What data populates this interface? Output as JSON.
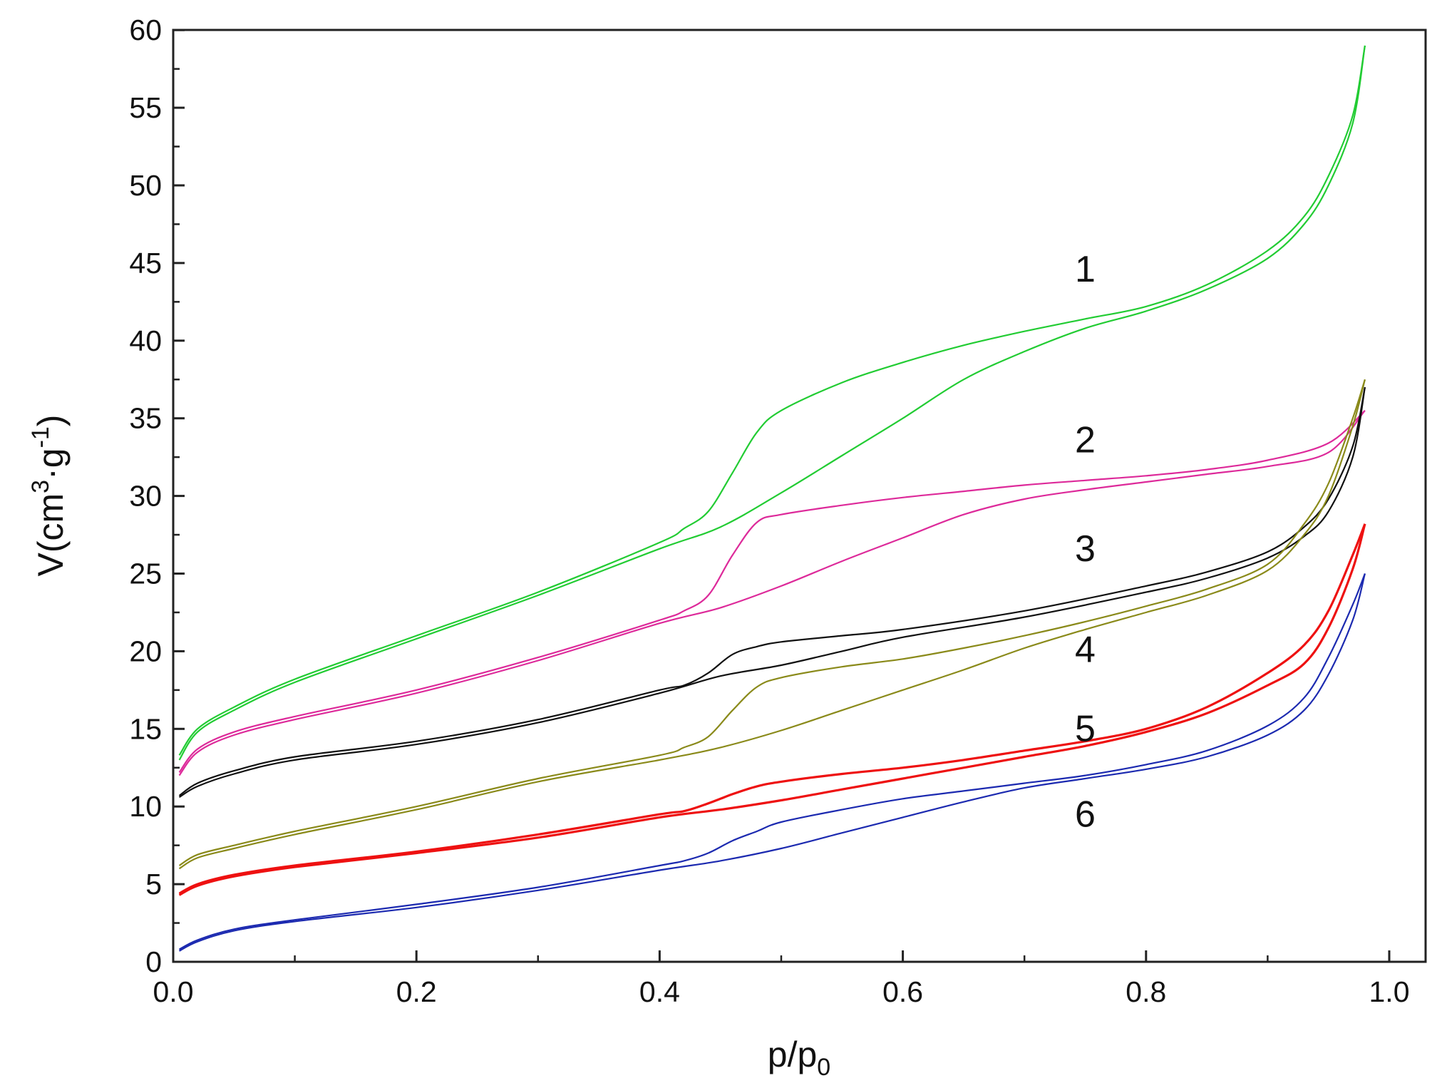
{
  "chart_data": {
    "type": "line",
    "title": "",
    "xlabel": {
      "main": "p/p",
      "sub": "0"
    },
    "ylabel": {
      "prefix": "V(cm",
      "sup1": "3",
      "mid": "·g",
      "sup2": "-1",
      "suffix": ")"
    },
    "xlim": [
      0.0,
      1.03
    ],
    "ylim": [
      0,
      60
    ],
    "xticks": [
      {
        "value": 0.0,
        "label": "0.0"
      },
      {
        "value": 0.2,
        "label": "0.2"
      },
      {
        "value": 0.4,
        "label": "0.4"
      },
      {
        "value": 0.6,
        "label": "0.6"
      },
      {
        "value": 0.8,
        "label": "0.8"
      },
      {
        "value": 1.0,
        "label": "1.0"
      }
    ],
    "xminor": [
      0.1,
      0.3,
      0.5,
      0.7,
      0.9
    ],
    "yticks": [
      {
        "value": 0,
        "label": "0"
      },
      {
        "value": 5,
        "label": "5"
      },
      {
        "value": 10,
        "label": "10"
      },
      {
        "value": 15,
        "label": "15"
      },
      {
        "value": 20,
        "label": "20"
      },
      {
        "value": 25,
        "label": "25"
      },
      {
        "value": 30,
        "label": "30"
      },
      {
        "value": 35,
        "label": "35"
      },
      {
        "value": 40,
        "label": "40"
      },
      {
        "value": 45,
        "label": "45"
      },
      {
        "value": 50,
        "label": "50"
      },
      {
        "value": 55,
        "label": "55"
      },
      {
        "value": 60,
        "label": "60"
      }
    ],
    "yminor": [
      2.5,
      7.5,
      12.5,
      17.5,
      22.5,
      27.5,
      32.5,
      37.5,
      42.5,
      47.5,
      52.5,
      57.5
    ],
    "grid": false,
    "series": [
      {
        "name": "1",
        "color": "#22cc33",
        "label_at": [
          0.75,
          43.8
        ],
        "adsorption": [
          [
            0.005,
            13.0
          ],
          [
            0.02,
            14.8
          ],
          [
            0.05,
            16.2
          ],
          [
            0.1,
            18.0
          ],
          [
            0.2,
            20.8
          ],
          [
            0.3,
            23.6
          ],
          [
            0.4,
            26.6
          ],
          [
            0.45,
            28.0
          ],
          [
            0.5,
            30.2
          ],
          [
            0.55,
            32.6
          ],
          [
            0.6,
            35.0
          ],
          [
            0.65,
            37.5
          ],
          [
            0.7,
            39.3
          ],
          [
            0.75,
            40.8
          ],
          [
            0.8,
            41.9
          ],
          [
            0.85,
            43.3
          ],
          [
            0.9,
            45.3
          ],
          [
            0.93,
            47.5
          ],
          [
            0.95,
            50.0
          ],
          [
            0.97,
            54.0
          ],
          [
            0.98,
            59.0
          ]
        ],
        "desorption": [
          [
            0.98,
            59.0
          ],
          [
            0.97,
            54.5
          ],
          [
            0.95,
            50.6
          ],
          [
            0.93,
            48.0
          ],
          [
            0.9,
            45.8
          ],
          [
            0.85,
            43.6
          ],
          [
            0.8,
            42.2
          ],
          [
            0.75,
            41.4
          ],
          [
            0.7,
            40.6
          ],
          [
            0.65,
            39.7
          ],
          [
            0.6,
            38.6
          ],
          [
            0.55,
            37.3
          ],
          [
            0.5,
            35.5
          ],
          [
            0.48,
            34.1
          ],
          [
            0.46,
            31.5
          ],
          [
            0.44,
            29.0
          ],
          [
            0.42,
            27.9
          ],
          [
            0.4,
            27.0
          ],
          [
            0.3,
            23.8
          ],
          [
            0.2,
            21.0
          ],
          [
            0.1,
            18.2
          ],
          [
            0.05,
            16.4
          ],
          [
            0.02,
            15.0
          ],
          [
            0.005,
            13.3
          ]
        ]
      },
      {
        "name": "2",
        "color": "#dd2a9a",
        "label_at": [
          0.75,
          32.8
        ],
        "adsorption": [
          [
            0.005,
            12.0
          ],
          [
            0.02,
            13.5
          ],
          [
            0.05,
            14.6
          ],
          [
            0.1,
            15.6
          ],
          [
            0.2,
            17.3
          ],
          [
            0.3,
            19.4
          ],
          [
            0.4,
            21.8
          ],
          [
            0.45,
            22.8
          ],
          [
            0.5,
            24.2
          ],
          [
            0.55,
            25.8
          ],
          [
            0.6,
            27.3
          ],
          [
            0.65,
            28.8
          ],
          [
            0.7,
            29.8
          ],
          [
            0.75,
            30.4
          ],
          [
            0.8,
            30.9
          ],
          [
            0.85,
            31.4
          ],
          [
            0.9,
            31.9
          ],
          [
            0.95,
            32.8
          ],
          [
            0.98,
            35.5
          ]
        ],
        "desorption": [
          [
            0.98,
            35.5
          ],
          [
            0.95,
            33.4
          ],
          [
            0.9,
            32.3
          ],
          [
            0.85,
            31.7
          ],
          [
            0.8,
            31.3
          ],
          [
            0.75,
            31.0
          ],
          [
            0.7,
            30.7
          ],
          [
            0.65,
            30.3
          ],
          [
            0.6,
            29.9
          ],
          [
            0.55,
            29.4
          ],
          [
            0.5,
            28.8
          ],
          [
            0.48,
            28.3
          ],
          [
            0.46,
            26.2
          ],
          [
            0.44,
            23.6
          ],
          [
            0.42,
            22.6
          ],
          [
            0.4,
            22.0
          ],
          [
            0.3,
            19.6
          ],
          [
            0.2,
            17.5
          ],
          [
            0.1,
            15.8
          ],
          [
            0.05,
            14.8
          ],
          [
            0.02,
            13.7
          ],
          [
            0.005,
            12.2
          ]
        ]
      },
      {
        "name": "3",
        "color": "#111111",
        "label_at": [
          0.75,
          25.8
        ],
        "adsorption": [
          [
            0.005,
            10.6
          ],
          [
            0.02,
            11.3
          ],
          [
            0.05,
            12.1
          ],
          [
            0.1,
            13.0
          ],
          [
            0.2,
            14.0
          ],
          [
            0.3,
            15.4
          ],
          [
            0.4,
            17.3
          ],
          [
            0.45,
            18.4
          ],
          [
            0.5,
            19.1
          ],
          [
            0.55,
            20.0
          ],
          [
            0.6,
            20.9
          ],
          [
            0.7,
            22.2
          ],
          [
            0.8,
            23.8
          ],
          [
            0.85,
            24.7
          ],
          [
            0.9,
            26.0
          ],
          [
            0.93,
            27.4
          ],
          [
            0.95,
            29.0
          ],
          [
            0.97,
            32.5
          ],
          [
            0.98,
            37.0
          ]
        ],
        "desorption": [
          [
            0.98,
            37.0
          ],
          [
            0.97,
            33.2
          ],
          [
            0.95,
            29.8
          ],
          [
            0.93,
            28.0
          ],
          [
            0.9,
            26.4
          ],
          [
            0.85,
            25.1
          ],
          [
            0.8,
            24.2
          ],
          [
            0.7,
            22.6
          ],
          [
            0.6,
            21.4
          ],
          [
            0.55,
            21.0
          ],
          [
            0.5,
            20.6
          ],
          [
            0.48,
            20.3
          ],
          [
            0.46,
            19.8
          ],
          [
            0.44,
            18.6
          ],
          [
            0.42,
            17.8
          ],
          [
            0.4,
            17.5
          ],
          [
            0.3,
            15.6
          ],
          [
            0.2,
            14.2
          ],
          [
            0.1,
            13.2
          ],
          [
            0.05,
            12.3
          ],
          [
            0.02,
            11.5
          ],
          [
            0.005,
            10.7
          ]
        ]
      },
      {
        "name": "4",
        "color": "#8a8a1a",
        "label_at": [
          0.75,
          19.3
        ],
        "adsorption": [
          [
            0.005,
            6.0
          ],
          [
            0.02,
            6.7
          ],
          [
            0.05,
            7.3
          ],
          [
            0.1,
            8.2
          ],
          [
            0.2,
            9.8
          ],
          [
            0.3,
            11.6
          ],
          [
            0.4,
            13.0
          ],
          [
            0.45,
            13.8
          ],
          [
            0.5,
            14.9
          ],
          [
            0.55,
            16.2
          ],
          [
            0.6,
            17.5
          ],
          [
            0.65,
            18.8
          ],
          [
            0.7,
            20.2
          ],
          [
            0.75,
            21.4
          ],
          [
            0.8,
            22.5
          ],
          [
            0.85,
            23.6
          ],
          [
            0.9,
            25.2
          ],
          [
            0.93,
            27.5
          ],
          [
            0.95,
            30.0
          ],
          [
            0.97,
            34.5
          ],
          [
            0.98,
            37.5
          ]
        ],
        "desorption": [
          [
            0.98,
            37.5
          ],
          [
            0.97,
            35.0
          ],
          [
            0.95,
            30.8
          ],
          [
            0.93,
            28.2
          ],
          [
            0.9,
            25.6
          ],
          [
            0.85,
            24.0
          ],
          [
            0.8,
            22.9
          ],
          [
            0.75,
            21.9
          ],
          [
            0.7,
            21.0
          ],
          [
            0.65,
            20.2
          ],
          [
            0.6,
            19.5
          ],
          [
            0.55,
            19.0
          ],
          [
            0.5,
            18.3
          ],
          [
            0.48,
            17.7
          ],
          [
            0.46,
            16.2
          ],
          [
            0.44,
            14.5
          ],
          [
            0.42,
            13.8
          ],
          [
            0.4,
            13.3
          ],
          [
            0.3,
            11.8
          ],
          [
            0.2,
            10.0
          ],
          [
            0.1,
            8.4
          ],
          [
            0.05,
            7.5
          ],
          [
            0.02,
            6.9
          ],
          [
            0.005,
            6.2
          ]
        ]
      },
      {
        "name": "5",
        "color": "#ee1111",
        "label_at": [
          0.75,
          14.2
        ],
        "adsorption": [
          [
            0.005,
            4.3
          ],
          [
            0.02,
            4.9
          ],
          [
            0.05,
            5.5
          ],
          [
            0.1,
            6.1
          ],
          [
            0.2,
            7.0
          ],
          [
            0.3,
            8.0
          ],
          [
            0.4,
            9.3
          ],
          [
            0.45,
            9.8
          ],
          [
            0.5,
            10.4
          ],
          [
            0.55,
            11.1
          ],
          [
            0.6,
            11.8
          ],
          [
            0.65,
            12.5
          ],
          [
            0.7,
            13.2
          ],
          [
            0.75,
            13.9
          ],
          [
            0.8,
            14.8
          ],
          [
            0.85,
            16.0
          ],
          [
            0.9,
            17.8
          ],
          [
            0.93,
            19.2
          ],
          [
            0.95,
            21.5
          ],
          [
            0.97,
            25.3
          ],
          [
            0.98,
            28.2
          ]
        ],
        "desorption": [
          [
            0.98,
            28.2
          ],
          [
            0.97,
            26.2
          ],
          [
            0.95,
            22.6
          ],
          [
            0.93,
            20.4
          ],
          [
            0.9,
            18.6
          ],
          [
            0.85,
            16.4
          ],
          [
            0.8,
            15.0
          ],
          [
            0.75,
            14.2
          ],
          [
            0.7,
            13.6
          ],
          [
            0.65,
            13.0
          ],
          [
            0.6,
            12.5
          ],
          [
            0.55,
            12.1
          ],
          [
            0.5,
            11.6
          ],
          [
            0.48,
            11.3
          ],
          [
            0.46,
            10.8
          ],
          [
            0.44,
            10.2
          ],
          [
            0.42,
            9.7
          ],
          [
            0.4,
            9.5
          ],
          [
            0.3,
            8.2
          ],
          [
            0.2,
            7.1
          ],
          [
            0.1,
            6.2
          ],
          [
            0.05,
            5.6
          ],
          [
            0.02,
            5.0
          ],
          [
            0.005,
            4.4
          ]
        ]
      },
      {
        "name": "6",
        "color": "#1c2ab0",
        "label_at": [
          0.75,
          8.7
        ],
        "adsorption": [
          [
            0.005,
            0.7
          ],
          [
            0.02,
            1.3
          ],
          [
            0.05,
            2.0
          ],
          [
            0.1,
            2.6
          ],
          [
            0.2,
            3.5
          ],
          [
            0.3,
            4.6
          ],
          [
            0.4,
            5.9
          ],
          [
            0.45,
            6.5
          ],
          [
            0.5,
            7.3
          ],
          [
            0.55,
            8.3
          ],
          [
            0.6,
            9.3
          ],
          [
            0.65,
            10.3
          ],
          [
            0.7,
            11.2
          ],
          [
            0.75,
            11.8
          ],
          [
            0.8,
            12.4
          ],
          [
            0.85,
            13.2
          ],
          [
            0.9,
            14.6
          ],
          [
            0.93,
            16.2
          ],
          [
            0.95,
            18.5
          ],
          [
            0.97,
            22.0
          ],
          [
            0.98,
            25.0
          ]
        ],
        "desorption": [
          [
            0.98,
            25.0
          ],
          [
            0.97,
            23.0
          ],
          [
            0.95,
            19.6
          ],
          [
            0.93,
            17.0
          ],
          [
            0.9,
            15.2
          ],
          [
            0.85,
            13.6
          ],
          [
            0.8,
            12.7
          ],
          [
            0.75,
            12.0
          ],
          [
            0.7,
            11.5
          ],
          [
            0.65,
            11.0
          ],
          [
            0.6,
            10.5
          ],
          [
            0.55,
            9.8
          ],
          [
            0.5,
            9.0
          ],
          [
            0.48,
            8.4
          ],
          [
            0.46,
            7.8
          ],
          [
            0.44,
            7.0
          ],
          [
            0.42,
            6.5
          ],
          [
            0.4,
            6.2
          ],
          [
            0.3,
            4.8
          ],
          [
            0.2,
            3.7
          ],
          [
            0.1,
            2.7
          ],
          [
            0.05,
            2.1
          ],
          [
            0.02,
            1.4
          ],
          [
            0.005,
            0.8
          ]
        ]
      }
    ]
  }
}
